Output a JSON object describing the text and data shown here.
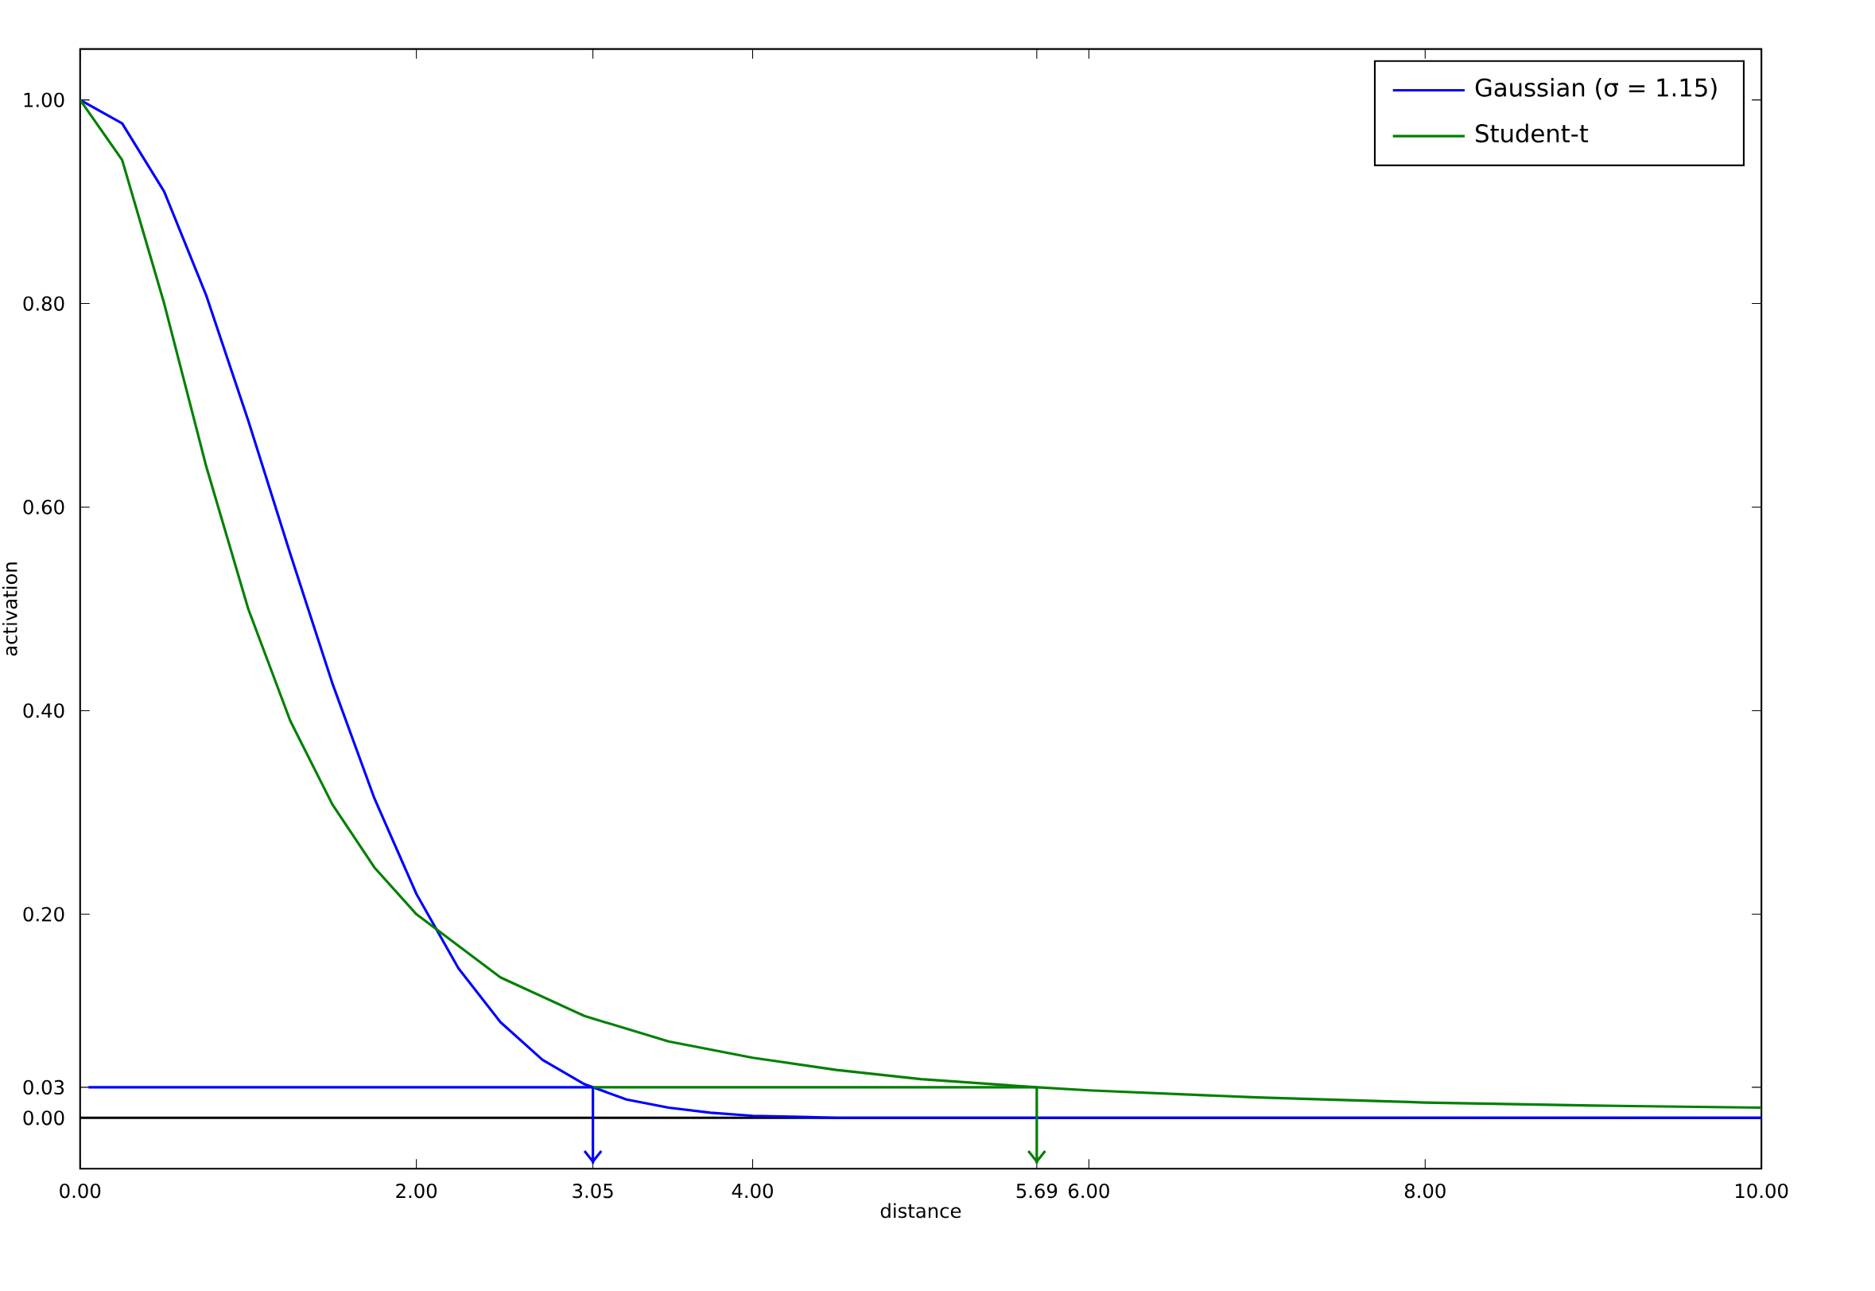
{
  "chart_data": {
    "type": "line",
    "xlabel": "distance",
    "ylabel": "activation",
    "xlim": [
      0,
      10
    ],
    "ylim": [
      -0.05,
      1.05
    ],
    "xticks": [
      {
        "value": 0,
        "label": "0.00"
      },
      {
        "value": 2,
        "label": "2.00"
      },
      {
        "value": 3.05,
        "label": "3.05"
      },
      {
        "value": 4,
        "label": "4.00"
      },
      {
        "value": 5.69,
        "label": "5.69"
      },
      {
        "value": 6,
        "label": "6.00"
      },
      {
        "value": 8,
        "label": "8.00"
      },
      {
        "value": 10,
        "label": "10.00"
      }
    ],
    "yticks": [
      {
        "value": 0,
        "label": "0.00"
      },
      {
        "value": 0.03,
        "label": "0.03"
      },
      {
        "value": 0.2,
        "label": "0.20"
      },
      {
        "value": 0.4,
        "label": "0.40"
      },
      {
        "value": 0.6,
        "label": "0.60"
      },
      {
        "value": 0.8,
        "label": "0.80"
      },
      {
        "value": 1,
        "label": "1.00"
      }
    ],
    "series": [
      {
        "name": "Gaussian (σ = 1.15)",
        "color": "#0000ff",
        "x": [
          0,
          0.25,
          0.5,
          0.75,
          1,
          1.25,
          1.5,
          1.75,
          2,
          2.25,
          2.5,
          2.75,
          3,
          3.25,
          3.5,
          3.75,
          4,
          4.5,
          5,
          6,
          8,
          10
        ],
        "values": [
          1.0,
          0.977,
          0.91,
          0.808,
          0.685,
          0.554,
          0.427,
          0.314,
          0.22,
          0.147,
          0.094,
          0.057,
          0.033,
          0.018,
          0.01,
          0.005,
          0.002,
          0.0,
          0.0,
          0.0,
          0.0,
          0.0
        ]
      },
      {
        "name": "Student-t",
        "color": "#008000",
        "x": [
          0,
          0.25,
          0.5,
          0.75,
          1,
          1.25,
          1.5,
          1.75,
          2,
          2.5,
          3,
          3.5,
          4,
          4.5,
          5,
          5.69,
          6,
          7,
          8,
          9,
          10
        ],
        "values": [
          1.0,
          0.941,
          0.8,
          0.64,
          0.5,
          0.39,
          0.308,
          0.246,
          0.2,
          0.138,
          0.1,
          0.075,
          0.059,
          0.047,
          0.038,
          0.03,
          0.027,
          0.02,
          0.015,
          0.012,
          0.01
        ]
      },
      {
        "color": "#0000ff",
        "x": [
          0.05,
          3.05
        ],
        "values": [
          0.03,
          0.03
        ]
      },
      {
        "color": "#008000",
        "x": [
          3.05,
          5.69
        ],
        "values": [
          0.03,
          0.03
        ]
      },
      {
        "color": "#0000ff",
        "x": [
          3.05,
          3.05
        ],
        "values": [
          0.03,
          -0.045
        ]
      },
      {
        "color": "#008000",
        "x": [
          5.69,
          5.69
        ],
        "values": [
          0.03,
          -0.045
        ]
      }
    ],
    "ref_lines": [
      {
        "axis": "y",
        "value": 0,
        "color": "#000000"
      }
    ],
    "grid": false,
    "legend": "top right"
  }
}
